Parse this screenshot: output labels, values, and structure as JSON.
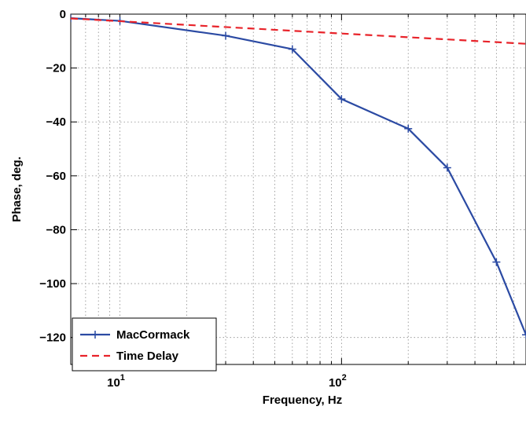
{
  "chart_data": {
    "type": "line",
    "xlabel": "Frequency, Hz",
    "ylabel": "Phase, deg.",
    "xscale": "log",
    "xlim": [
      6,
      680
    ],
    "ylim": [
      -130,
      0
    ],
    "x_major_ticks": [
      10,
      100
    ],
    "x_tick_labels": [
      {
        "base": "10",
        "exp": "1"
      },
      {
        "base": "10",
        "exp": "2"
      }
    ],
    "y_ticks": [
      0,
      -20,
      -40,
      -60,
      -80,
      -100,
      -120
    ],
    "y_tick_labels": [
      "0",
      "−20",
      "−40",
      "−60",
      "−80",
      "−100",
      "−120"
    ],
    "grid": true,
    "legend_position": "bottom-left",
    "series": [
      {
        "name": "MacCormack",
        "color": "#2B4AA3",
        "style": "solid",
        "marker": "plus",
        "x": [
          6,
          10,
          30,
          60,
          100,
          200,
          300,
          500,
          680
        ],
        "y": [
          -1.5,
          -2.5,
          -8,
          -13,
          -31.5,
          -42.5,
          -57,
          -92,
          -119
        ]
      },
      {
        "name": "Time Delay",
        "color": "#E8232A",
        "style": "dashed",
        "marker": "none",
        "x": [
          6,
          680
        ],
        "y": [
          -1.6,
          -11
        ]
      }
    ]
  }
}
